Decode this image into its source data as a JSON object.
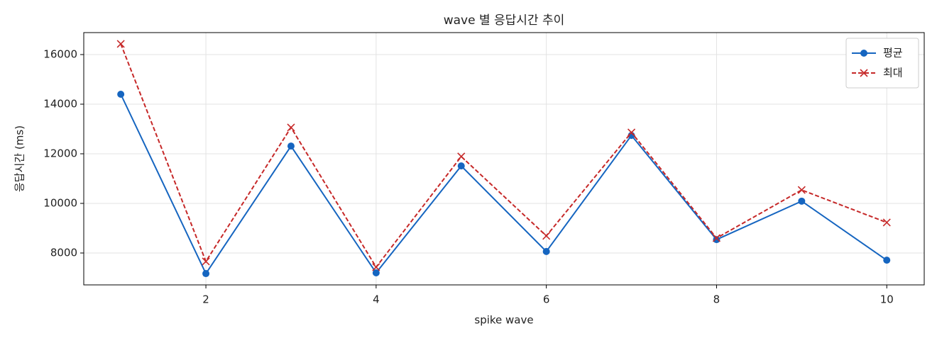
{
  "chart_data": {
    "type": "line",
    "title": "wave 별 응답시간 추이",
    "xlabel": "spike wave",
    "ylabel": "응답시간 (ms)",
    "x": [
      1,
      2,
      3,
      4,
      5,
      6,
      7,
      8,
      9,
      10
    ],
    "series": [
      {
        "name": "평균",
        "color": "#1565c0",
        "marker": "o",
        "linestyle": "solid",
        "values": [
          14400,
          7170,
          12310,
          7200,
          11510,
          8060,
          12740,
          8540,
          10090,
          7710
        ]
      },
      {
        "name": "최대",
        "color": "#c62828",
        "marker": "x",
        "linestyle": "dashed",
        "values": [
          16430,
          7660,
          13060,
          7430,
          11890,
          8690,
          12860,
          8600,
          10540,
          9230
        ]
      }
    ],
    "xlim": [
      0.565,
      10.44
    ],
    "ylim": [
      6714,
      16886
    ],
    "xticks": [
      2,
      4,
      6,
      8,
      10
    ],
    "yticks": [
      8000,
      10000,
      12000,
      14000,
      16000
    ],
    "grid": true,
    "legend": "upper right"
  }
}
